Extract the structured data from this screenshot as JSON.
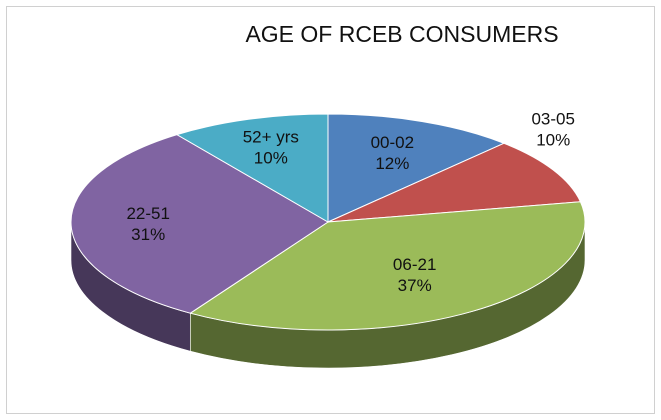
{
  "chart_data": {
    "type": "pie",
    "title": "AGE OF RCEB CONSUMERS",
    "categories": [
      "00-02",
      "03-05",
      "06-21",
      "22-51",
      "52+ yrs"
    ],
    "values": [
      12,
      10,
      37,
      31,
      10
    ],
    "value_labels": [
      "12%",
      "10%",
      "37%",
      "31%",
      "10%"
    ],
    "colors": [
      "#4f81bd",
      "#c0504d",
      "#9bbb59",
      "#8064a2",
      "#4bacc6"
    ]
  }
}
